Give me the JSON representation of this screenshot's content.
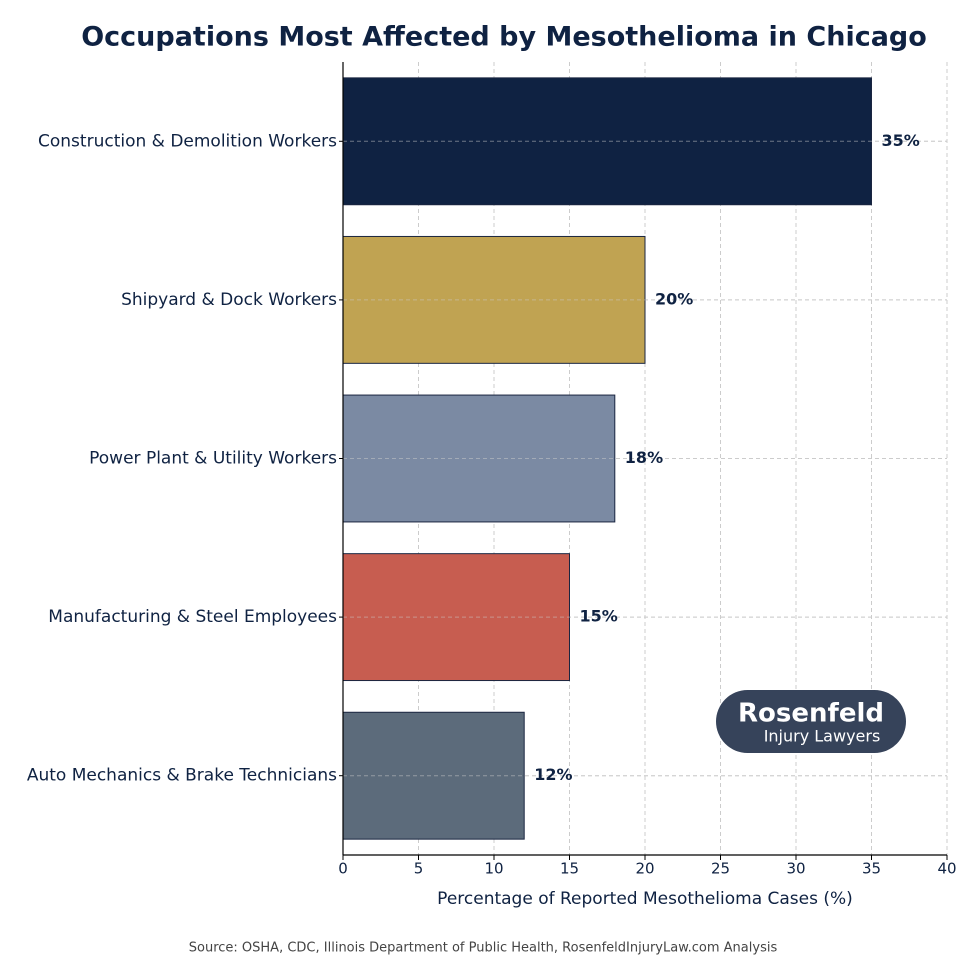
{
  "chart_data": {
    "type": "barh",
    "title": "Occupations Most Affected by Mesothelioma in Chicago",
    "categories": [
      "Construction & Demolition Workers",
      "Shipyard & Dock Workers",
      "Power Plant & Utility Workers",
      "Manufacturing & Steel Employees",
      "Auto Mechanics & Brake Technicians"
    ],
    "values": [
      35,
      20,
      18,
      15,
      12
    ],
    "value_labels": [
      "35%",
      "20%",
      "18%",
      "15%",
      "12%"
    ],
    "colors": [
      "#0f2242",
      "#c0a352",
      "#7b8aa3",
      "#c75d50",
      "#5c6b7b"
    ],
    "xlim": [
      0,
      40
    ],
    "xticks": [
      0,
      5,
      10,
      15,
      20,
      25,
      30,
      35,
      40
    ],
    "x_label": "Percentage of Reported Mesothelioma Cases (%)",
    "grid": true,
    "source": "Source: OSHA, CDC, Illinois Department of Public Health, RosenfeldInjuryLaw.com Analysis",
    "logo": {
      "name": "Rosenfeld",
      "subtitle": "Injury Lawyers"
    }
  }
}
